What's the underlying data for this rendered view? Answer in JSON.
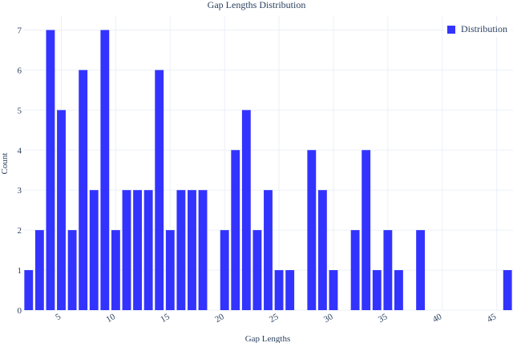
{
  "chart_data": {
    "type": "bar",
    "title": "Gap Lengths Distribution",
    "xlabel": "Gap Lengths",
    "ylabel": "Count",
    "xlim": [
      1.5,
      46.5
    ],
    "ylim": [
      0,
      7.35
    ],
    "x_ticks": [
      5,
      10,
      15,
      20,
      25,
      30,
      35,
      40,
      45
    ],
    "y_ticks": [
      0,
      1,
      2,
      3,
      4,
      5,
      6,
      7
    ],
    "legend_position": "top-right",
    "grid": true,
    "series": [
      {
        "name": "Distribution",
        "color": "#3333ff",
        "x": [
          2,
          3,
          4,
          5,
          6,
          7,
          8,
          9,
          10,
          11,
          12,
          13,
          14,
          15,
          16,
          17,
          18,
          20,
          21,
          22,
          23,
          24,
          25,
          26,
          28,
          29,
          30,
          32,
          33,
          34,
          35,
          36,
          38,
          46
        ],
        "values": [
          1,
          2,
          7,
          5,
          2,
          6,
          3,
          7,
          2,
          3,
          3,
          3,
          6,
          2,
          3,
          3,
          3,
          2,
          4,
          5,
          2,
          3,
          1,
          1,
          4,
          3,
          1,
          2,
          4,
          1,
          2,
          1,
          2,
          1
        ]
      }
    ]
  }
}
